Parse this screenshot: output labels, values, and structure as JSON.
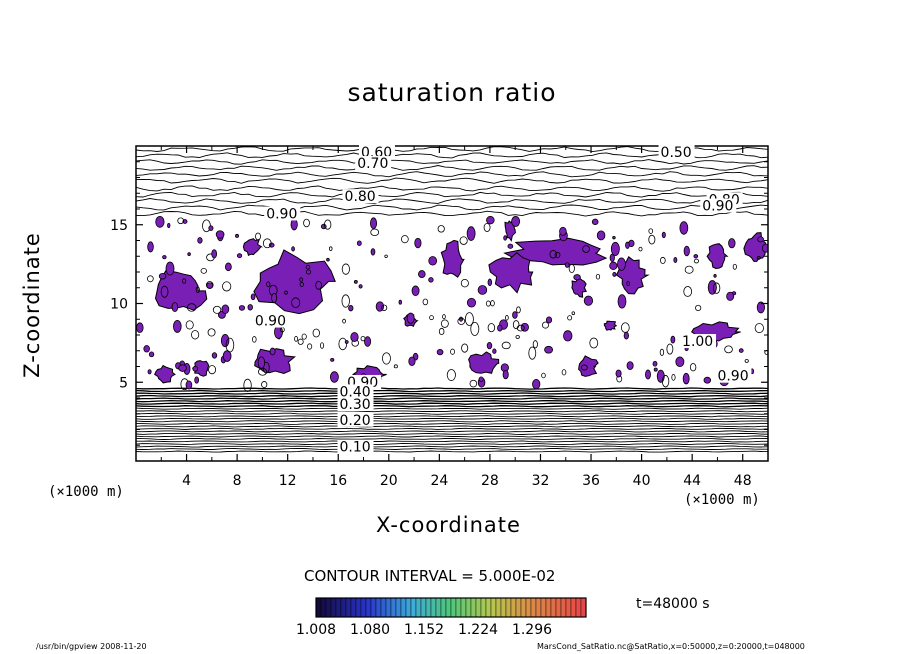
{
  "chart_data": {
    "type": "contour",
    "title": "saturation ratio",
    "xlabel": "X-coordinate",
    "ylabel": "Z-coordinate",
    "x_unit": "(×1000 m)",
    "y_unit": "(×1000 m)",
    "x_range": [
      0,
      50
    ],
    "y_range": [
      0,
      20
    ],
    "x_ticks": [
      4,
      8,
      12,
      16,
      20,
      24,
      28,
      32,
      36,
      40,
      44,
      48
    ],
    "y_ticks": [
      5,
      10,
      15
    ],
    "contour_labels": [
      {
        "text": "0.60",
        "x": 17.8,
        "y": 19.3
      },
      {
        "text": "0.50",
        "x": 41.5,
        "y": 19.3
      },
      {
        "text": "0.70",
        "x": 17.5,
        "y": 18.6
      },
      {
        "text": "0.80",
        "x": 16.5,
        "y": 16.5
      },
      {
        "text": "0.80",
        "x": 45.3,
        "y": 16.3
      },
      {
        "text": "0.90",
        "x": 44.8,
        "y": 15.9
      },
      {
        "text": "0.90",
        "x": 10.3,
        "y": 15.4
      },
      {
        "text": "0.90",
        "x": 9.4,
        "y": 8.6
      },
      {
        "text": "1.00",
        "x": 43.2,
        "y": 7.3
      },
      {
        "text": "0.90",
        "x": 46.0,
        "y": 5.1
      },
      {
        "text": "0.90",
        "x": 16.7,
        "y": 4.7
      },
      {
        "text": "0.40",
        "x": 16.1,
        "y": 4.1
      },
      {
        "text": "0.30",
        "x": 16.1,
        "y": 3.3
      },
      {
        "text": "0.20",
        "x": 16.1,
        "y": 2.3
      },
      {
        "text": "0.10",
        "x": 16.1,
        "y": 0.6
      }
    ],
    "contour_interval_label": "CONTOUR INTERVAL = 5.000E-02",
    "colorbar": {
      "ticks": [
        "1.008",
        "1.080",
        "1.152",
        "1.224",
        "1.296"
      ],
      "min": 1.008,
      "max": 1.368
    },
    "fill_color": "#7a1fb5",
    "time_label": "t=48000 s"
  },
  "footer": {
    "left": "/usr/bin/gpview  2008-11-20",
    "right": "MarsCond_SatRatio.nc@SatRatio,x=0:50000,z=0:20000,t=048000"
  }
}
